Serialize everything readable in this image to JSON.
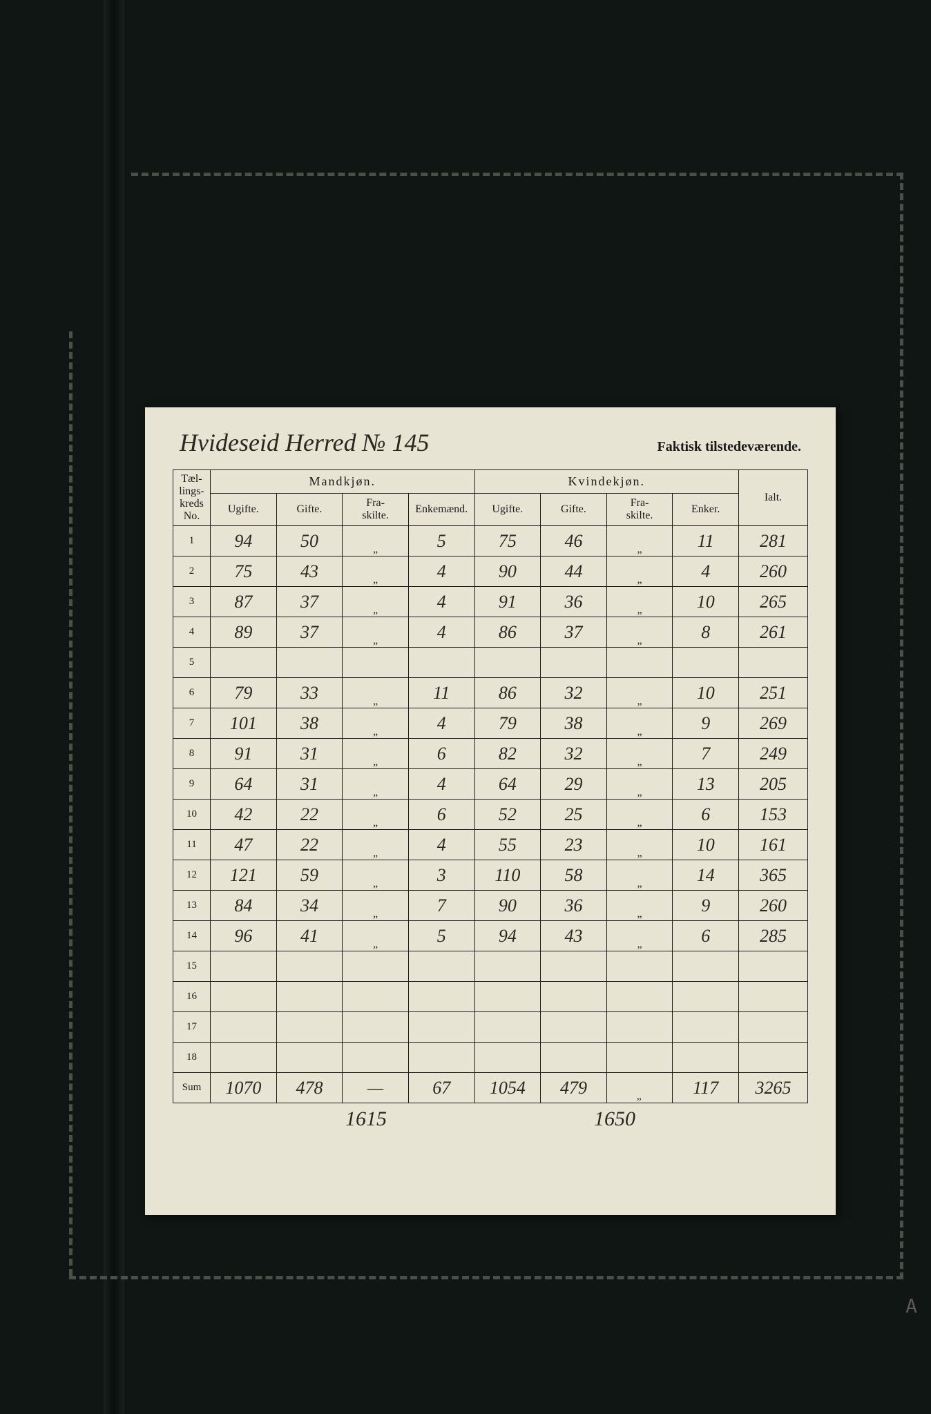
{
  "header": {
    "handwritten_title": "Hvideseid Herred № 145",
    "printed_subtitle": "Faktisk tilstedeværende."
  },
  "columns": {
    "row_no_label": "Tæl-\nlings-\nkreds\nNo.",
    "male_group": "Mandkjøn.",
    "female_group": "Kvindekjøn.",
    "ialt": "Ialt.",
    "male_cols": [
      "Ugifte.",
      "Gifte.",
      "Fra-\nskilte.",
      "Enkemænd."
    ],
    "female_cols": [
      "Ugifte.",
      "Gifte.",
      "Fra-\nskilte.",
      "Enker."
    ]
  },
  "rows": [
    {
      "no": "1",
      "m_u": "94",
      "m_g": "50",
      "m_f": "„",
      "m_e": "5",
      "k_u": "75",
      "k_g": "46",
      "k_f": "„",
      "k_e": "11",
      "ialt": "281"
    },
    {
      "no": "2",
      "m_u": "75",
      "m_g": "43",
      "m_f": "„",
      "m_e": "4",
      "k_u": "90",
      "k_g": "44",
      "k_f": "„",
      "k_e": "4",
      "ialt": "260"
    },
    {
      "no": "3",
      "m_u": "87",
      "m_g": "37",
      "m_f": "„",
      "m_e": "4",
      "k_u": "91",
      "k_g": "36",
      "k_f": "„",
      "k_e": "10",
      "ialt": "265"
    },
    {
      "no": "4",
      "m_u": "89",
      "m_g": "37",
      "m_f": "„",
      "m_e": "4",
      "k_u": "86",
      "k_g": "37",
      "k_f": "„",
      "k_e": "8",
      "ialt": "261"
    },
    {
      "no": "5",
      "m_u": "",
      "m_g": "",
      "m_f": "",
      "m_e": "",
      "k_u": "",
      "k_g": "",
      "k_f": "",
      "k_e": "",
      "ialt": ""
    },
    {
      "no": "6",
      "m_u": "79",
      "m_g": "33",
      "m_f": "„",
      "m_e": "11",
      "k_u": "86",
      "k_g": "32",
      "k_f": "„",
      "k_e": "10",
      "ialt": "251"
    },
    {
      "no": "7",
      "m_u": "101",
      "m_g": "38",
      "m_f": "„",
      "m_e": "4",
      "k_u": "79",
      "k_g": "38",
      "k_f": "„",
      "k_e": "9",
      "ialt": "269"
    },
    {
      "no": "8",
      "m_u": "91",
      "m_g": "31",
      "m_f": "„",
      "m_e": "6",
      "k_u": "82",
      "k_g": "32",
      "k_f": "„",
      "k_e": "7",
      "ialt": "249"
    },
    {
      "no": "9",
      "m_u": "64",
      "m_g": "31",
      "m_f": "„",
      "m_e": "4",
      "k_u": "64",
      "k_g": "29",
      "k_f": "„",
      "k_e": "13",
      "ialt": "205"
    },
    {
      "no": "10",
      "m_u": "42",
      "m_g": "22",
      "m_f": "„",
      "m_e": "6",
      "k_u": "52",
      "k_g": "25",
      "k_f": "„",
      "k_e": "6",
      "ialt": "153"
    },
    {
      "no": "11",
      "m_u": "47",
      "m_g": "22",
      "m_f": "„",
      "m_e": "4",
      "k_u": "55",
      "k_g": "23",
      "k_f": "„",
      "k_e": "10",
      "ialt": "161"
    },
    {
      "no": "12",
      "m_u": "121",
      "m_g": "59",
      "m_f": "„",
      "m_e": "3",
      "k_u": "110",
      "k_g": "58",
      "k_f": "„",
      "k_e": "14",
      "ialt": "365"
    },
    {
      "no": "13",
      "m_u": "84",
      "m_g": "34",
      "m_f": "„",
      "m_e": "7",
      "k_u": "90",
      "k_g": "36",
      "k_f": "„",
      "k_e": "9",
      "ialt": "260"
    },
    {
      "no": "14",
      "m_u": "96",
      "m_g": "41",
      "m_f": "„",
      "m_e": "5",
      "k_u": "94",
      "k_g": "43",
      "k_f": "„",
      "k_e": "6",
      "ialt": "285"
    },
    {
      "no": "15",
      "m_u": "",
      "m_g": "",
      "m_f": "",
      "m_e": "",
      "k_u": "",
      "k_g": "",
      "k_f": "",
      "k_e": "",
      "ialt": ""
    },
    {
      "no": "16",
      "m_u": "",
      "m_g": "",
      "m_f": "",
      "m_e": "",
      "k_u": "",
      "k_g": "",
      "k_f": "",
      "k_e": "",
      "ialt": ""
    },
    {
      "no": "17",
      "m_u": "",
      "m_g": "",
      "m_f": "",
      "m_e": "",
      "k_u": "",
      "k_g": "",
      "k_f": "",
      "k_e": "",
      "ialt": ""
    },
    {
      "no": "18",
      "m_u": "",
      "m_g": "",
      "m_f": "",
      "m_e": "",
      "k_u": "",
      "k_g": "",
      "k_f": "",
      "k_e": "",
      "ialt": ""
    }
  ],
  "sum": {
    "label": "Sum",
    "m_u": "1070",
    "m_g": "478",
    "m_f": "—",
    "m_e": "67",
    "k_u": "1054",
    "k_g": "479",
    "k_f": "„",
    "k_e": "117",
    "ialt": "3265"
  },
  "subtotals": {
    "male": "1615",
    "female": "1650"
  },
  "corner_mark": "A"
}
